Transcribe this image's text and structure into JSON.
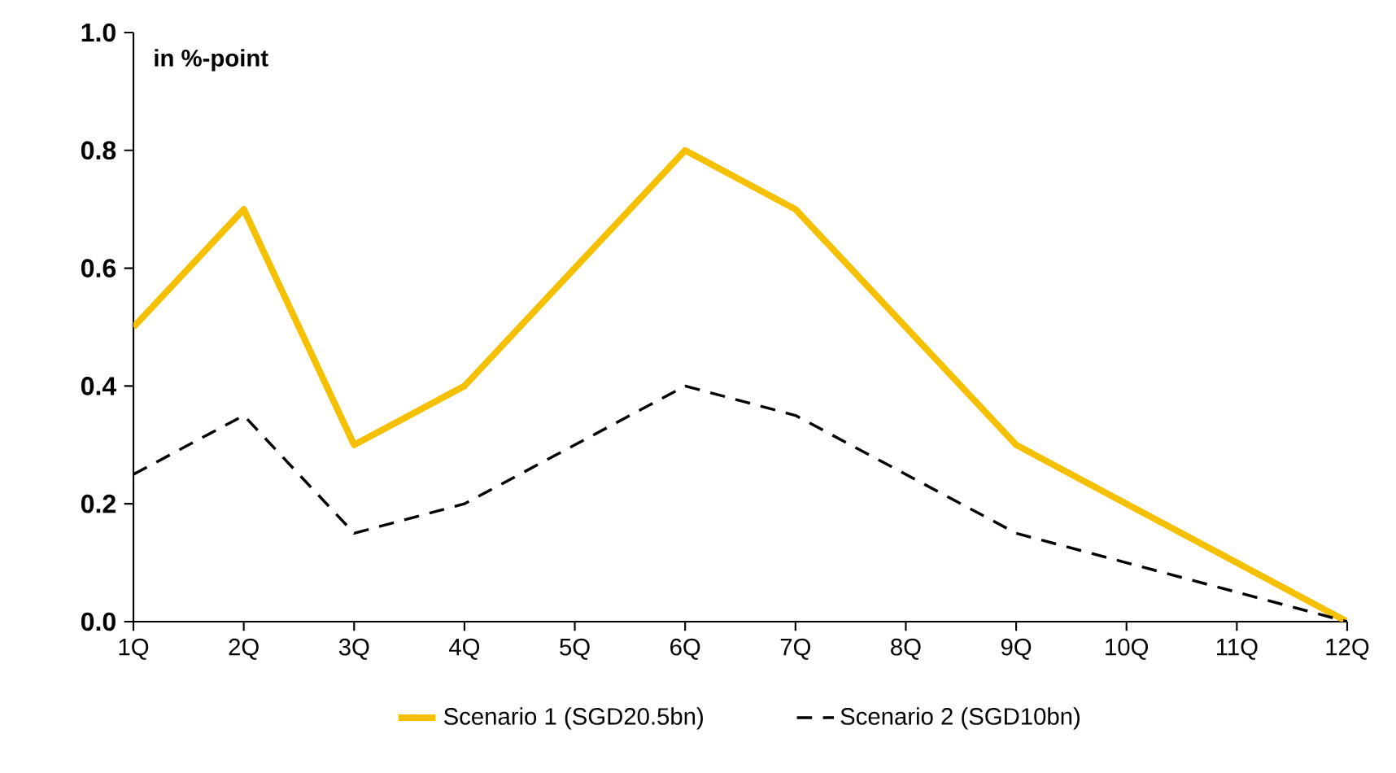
{
  "chart_data": {
    "type": "line",
    "ylabel": "in %-point",
    "categories": [
      "1Q",
      "2Q",
      "3Q",
      "4Q",
      "5Q",
      "6Q",
      "7Q",
      "8Q",
      "9Q",
      "10Q",
      "11Q",
      "12Q"
    ],
    "series": [
      {
        "name": "Scenario 1 (SGD20.5bn)",
        "color": "#f5c000",
        "line_style": "solid",
        "values": [
          0.5,
          0.7,
          0.3,
          0.4,
          0.6,
          0.8,
          0.7,
          0.5,
          0.3,
          0.2,
          0.1,
          0.0
        ]
      },
      {
        "name": "Scenario 2 (SGD10bn)",
        "color": "#000000",
        "line_style": "dashed",
        "values": [
          0.25,
          0.35,
          0.15,
          0.2,
          0.3,
          0.4,
          0.35,
          0.25,
          0.15,
          0.1,
          0.05,
          0.0
        ]
      }
    ],
    "ylim": [
      0,
      1
    ],
    "yticks": [
      {
        "value": 0,
        "label": "0.0"
      },
      {
        "value": 0.2,
        "label": "0.2"
      },
      {
        "value": 0.4,
        "label": "0.4"
      },
      {
        "value": 0.6,
        "label": "0.6"
      },
      {
        "value": 0.8,
        "label": "0.8"
      },
      {
        "value": 1,
        "label": "1.0"
      }
    ],
    "marker": "none",
    "legend": "bottom"
  }
}
